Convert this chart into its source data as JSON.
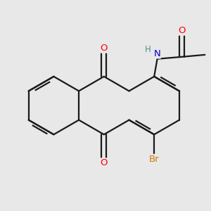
{
  "background_color": "#e8e8e8",
  "bond_color": "#1a1a1a",
  "lw": 1.6,
  "atom_colors": {
    "O": "#ff0000",
    "N": "#0000cc",
    "Br": "#cc7700",
    "H": "#4a9090",
    "C": "#1a1a1a"
  },
  "font_size": 9.5,
  "font_size_H": 8.5
}
